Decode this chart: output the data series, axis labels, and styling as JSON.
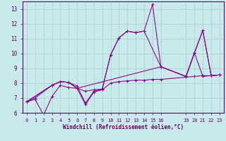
{
  "xlabel": "Windchill (Refroidissement éolien,°C)",
  "bg_color": "#c8eaea",
  "line_color": "#880088",
  "grid_color": "#aacccc",
  "axis_color": "#660066",
  "text_color": "#660066",
  "xlim": [
    -0.5,
    23.5
  ],
  "ylim": [
    6,
    13.5
  ],
  "xticks": [
    0,
    1,
    2,
    3,
    4,
    5,
    6,
    7,
    8,
    9,
    10,
    11,
    12,
    13,
    14,
    15,
    16,
    19,
    20,
    21,
    22,
    23
  ],
  "yticks": [
    6,
    7,
    8,
    9,
    10,
    11,
    12,
    13
  ],
  "lines": [
    {
      "x": [
        0,
        1,
        3,
        4,
        5,
        6,
        7,
        8,
        9,
        10,
        11,
        12,
        13,
        14,
        15,
        16,
        19,
        20,
        21,
        22,
        23
      ],
      "y": [
        6.75,
        7.0,
        7.85,
        8.1,
        8.05,
        7.8,
        6.65,
        7.45,
        7.6,
        9.9,
        11.05,
        11.5,
        11.4,
        11.5,
        13.3,
        9.1,
        8.45,
        10.05,
        8.45,
        8.5,
        8.55
      ]
    },
    {
      "x": [
        0,
        1,
        2,
        3,
        4,
        5,
        6,
        7,
        8,
        9,
        10,
        11,
        12,
        13,
        14,
        15,
        16,
        19,
        20,
        21,
        22,
        23
      ],
      "y": [
        6.75,
        6.9,
        5.85,
        7.1,
        7.85,
        7.7,
        7.65,
        6.55,
        7.4,
        7.55,
        8.0,
        8.1,
        8.15,
        8.2,
        8.2,
        8.25,
        8.25,
        8.4,
        8.45,
        8.5,
        8.5,
        8.55
      ]
    },
    {
      "x": [
        0,
        3,
        4,
        5,
        6,
        7,
        8,
        9,
        10,
        11,
        12,
        13,
        14,
        16,
        19,
        21,
        22,
        23
      ],
      "y": [
        6.75,
        7.85,
        8.1,
        8.05,
        7.65,
        7.45,
        7.55,
        7.6,
        9.9,
        11.05,
        11.5,
        11.4,
        11.5,
        9.1,
        8.45,
        11.55,
        8.5,
        8.55
      ]
    },
    {
      "x": [
        0,
        3,
        4,
        5,
        6,
        16,
        19,
        20,
        21,
        22,
        23
      ],
      "y": [
        6.75,
        7.85,
        8.1,
        8.05,
        7.65,
        9.1,
        8.45,
        10.05,
        11.55,
        8.5,
        8.55
      ]
    }
  ]
}
